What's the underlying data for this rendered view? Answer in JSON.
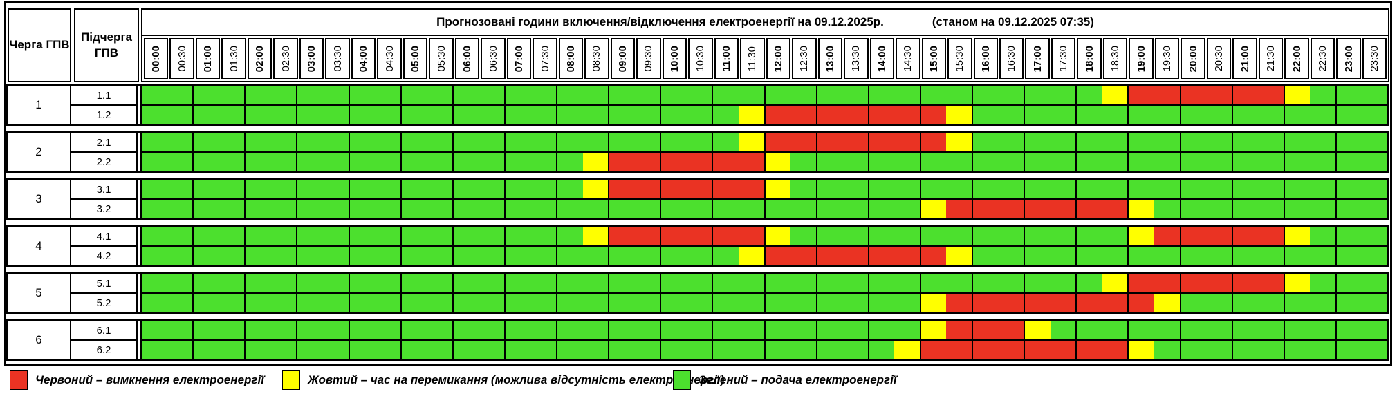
{
  "title": {
    "main": "Прогнозовані години включення/відключення електроенергії на 09.12.2025р.",
    "status": "(станом на 09.12.2025 07:35)"
  },
  "corner": {
    "col1": "Черга ГПВ",
    "col2": "Підчерга ГПВ"
  },
  "colors": {
    "red": "#EA3323",
    "yellow": "#FFFF00",
    "green": "#4CE02E",
    "border": "#000000",
    "background": "#FFFFFF"
  },
  "legend": [
    {
      "color_key": "red",
      "label": "Червоний – вимкнення електроенергії"
    },
    {
      "color_key": "yellow",
      "label": "Жовтий – час на перемикання (можлива відсутність електроенергії)"
    },
    {
      "color_key": "green",
      "label": "Зелений – подача електроенергії"
    }
  ],
  "chart_data": {
    "type": "heatmap",
    "x": [
      "00:00",
      "00:30",
      "01:00",
      "01:30",
      "02:00",
      "02:30",
      "03:00",
      "03:30",
      "04:00",
      "04:30",
      "05:00",
      "05:30",
      "06:00",
      "06:30",
      "07:00",
      "07:30",
      "08:00",
      "08:30",
      "09:00",
      "09:30",
      "10:00",
      "10:30",
      "11:00",
      "11:30",
      "12:00",
      "12:30",
      "13:00",
      "13:30",
      "14:00",
      "14:30",
      "15:00",
      "15:30",
      "16:00",
      "16:30",
      "17:00",
      "17:30",
      "18:00",
      "18:30",
      "19:00",
      "19:30",
      "20:00",
      "20:30",
      "21:00",
      "21:30",
      "22:00",
      "22:30",
      "23:00",
      "23:30"
    ],
    "status_legend": {
      "G": "подача електроенергії",
      "Y": "час на перемикання (можлива відсутність електроенергії)",
      "R": "вимкнення електроенергії"
    },
    "rows": [
      {
        "queue": "1",
        "subqueue": "1.1",
        "statuses": "GGGGGGGGGGGGGGGGGGGGGGGGGGGGGGGGGGGGGYRRRRRRYGGG"
      },
      {
        "queue": "1",
        "subqueue": "1.2",
        "statuses": "GGGGGGGGGGGGGGGGGGGGGGGYRRRRRRRYGGGGGGGGGGGGGGGG"
      },
      {
        "queue": "2",
        "subqueue": "2.1",
        "statuses": "GGGGGGGGGGGGGGGGGGGGGGGYRRRRRRRYGGGGGGGGGGGGGGGG"
      },
      {
        "queue": "2",
        "subqueue": "2.2",
        "statuses": "GGGGGGGGGGGGGGGGGYRRRRRRYGGGGGGGGGGGGGGGGGGGGGGG"
      },
      {
        "queue": "3",
        "subqueue": "3.1",
        "statuses": "GGGGGGGGGGGGGGGGGYRRRRRRYGGGGGGGGGGGGGGGGGGGGGGG"
      },
      {
        "queue": "3",
        "subqueue": "3.2",
        "statuses": "GGGGGGGGGGGGGGGGGGGGGGGGGGGGGGYRRRRRRRYGGGGGGGGG"
      },
      {
        "queue": "4",
        "subqueue": "4.1",
        "statuses": "GGGGGGGGGGGGGGGGGYRRRRRRYGGGGGGGGGGGGGYRRRRRYGGG"
      },
      {
        "queue": "4",
        "subqueue": "4.2",
        "statuses": "GGGGGGGGGGGGGGGGGGGGGGGYRRRRRRRYGGGGGGGGGGGGGGGG"
      },
      {
        "queue": "5",
        "subqueue": "5.1",
        "statuses": "GGGGGGGGGGGGGGGGGGGGGGGGGGGGGGGGGGGGGYRRRRRRYGGG"
      },
      {
        "queue": "5",
        "subqueue": "5.2",
        "statuses": "GGGGGGGGGGGGGGGGGGGGGGGGGGGGGGYRRRRRRRRYGGGGGGGG"
      },
      {
        "queue": "6",
        "subqueue": "6.1",
        "statuses": "GGGGGGGGGGGGGGGGGGGGGGGGGGGGGGYRRRYGGGGGGGGGGGGG"
      },
      {
        "queue": "6",
        "subqueue": "6.2",
        "statuses": "GGGGGGGGGGGGGGGGGGGGGGGGGGGGGYRRRRRRRRYGGGGGGGGG"
      }
    ]
  }
}
